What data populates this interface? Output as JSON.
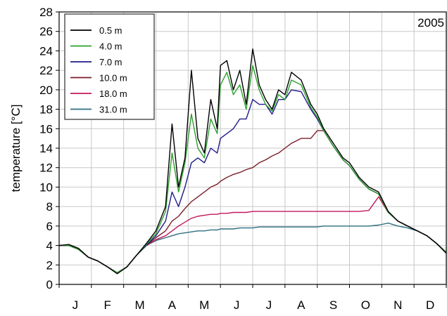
{
  "chart_data": {
    "type": "line",
    "annotation": "2005",
    "xlabel": "",
    "ylabel": "temperature [°C]",
    "ylim": [
      0,
      28
    ],
    "yticks": [
      0,
      2,
      4,
      6,
      8,
      10,
      12,
      14,
      16,
      18,
      20,
      22,
      24,
      26,
      28
    ],
    "x_unit": "month (Jan 1 = 0, Dec 31 = 12)",
    "xlim": [
      0,
      12
    ],
    "month_labels": [
      "J",
      "F",
      "M",
      "A",
      "M",
      "J",
      "J",
      "A",
      "S",
      "O",
      "N",
      "D"
    ],
    "grid": true,
    "legend_position": "top-left",
    "series": [
      {
        "name": "0.5 m",
        "color": "#000000",
        "x": [
          0,
          0.3,
          0.6,
          0.9,
          1.2,
          1.5,
          1.8,
          2.1,
          2.4,
          2.7,
          3.0,
          3.3,
          3.5,
          3.7,
          3.9,
          4.1,
          4.3,
          4.5,
          4.7,
          4.9,
          5.0,
          5.2,
          5.4,
          5.6,
          5.8,
          6.0,
          6.2,
          6.4,
          6.6,
          6.8,
          7.0,
          7.2,
          7.5,
          7.8,
          8.0,
          8.2,
          8.5,
          8.8,
          9.0,
          9.3,
          9.6,
          9.9,
          10.2,
          10.5,
          10.8,
          11.1,
          11.4,
          11.7,
          12.0
        ],
        "values": [
          4.0,
          4.1,
          3.7,
          2.8,
          2.4,
          1.8,
          1.1,
          1.8,
          3.0,
          4.2,
          5.5,
          8.0,
          16.5,
          10.0,
          13.0,
          22.0,
          15.0,
          13.5,
          19.0,
          16.0,
          22.5,
          23.0,
          20.0,
          22.0,
          18.5,
          24.2,
          20.5,
          19.0,
          18.0,
          20.0,
          19.5,
          21.8,
          21.0,
          18.5,
          17.5,
          16.0,
          14.5,
          13.0,
          12.5,
          11.0,
          10.0,
          9.5,
          7.5,
          6.5,
          6.0,
          5.5,
          5.0,
          4.2,
          3.2
        ]
      },
      {
        "name": "4.0 m",
        "color": "#2ca02c",
        "x": [
          0,
          0.3,
          0.6,
          0.9,
          1.2,
          1.5,
          1.8,
          2.1,
          2.4,
          2.7,
          3.0,
          3.3,
          3.5,
          3.7,
          3.9,
          4.1,
          4.3,
          4.5,
          4.7,
          4.9,
          5.0,
          5.2,
          5.4,
          5.6,
          5.8,
          6.0,
          6.2,
          6.4,
          6.6,
          6.8,
          7.0,
          7.2,
          7.5,
          7.8,
          8.0,
          8.2,
          8.5,
          8.8,
          9.0,
          9.3,
          9.6,
          9.9,
          10.2,
          10.5,
          10.8,
          11.1,
          11.4,
          11.7,
          12.0
        ],
        "values": [
          4.0,
          4.0,
          3.6,
          2.8,
          2.4,
          1.8,
          1.2,
          1.8,
          3.0,
          4.1,
          5.2,
          7.5,
          13.5,
          9.5,
          12.5,
          17.5,
          14.0,
          13.0,
          17.0,
          15.5,
          20.5,
          21.8,
          19.5,
          20.5,
          18.0,
          22.5,
          20.0,
          18.5,
          17.8,
          19.5,
          19.0,
          21.0,
          20.5,
          18.2,
          17.2,
          15.8,
          14.2,
          12.8,
          12.2,
          10.8,
          9.8,
          9.3,
          7.4,
          6.5,
          6.0,
          5.5,
          5.0,
          4.2,
          3.3
        ]
      },
      {
        "name": "7.0 m",
        "color": "#1f1a8c",
        "x": [
          0,
          0.3,
          0.6,
          0.9,
          1.2,
          1.5,
          1.8,
          2.1,
          2.4,
          2.7,
          3.0,
          3.3,
          3.5,
          3.7,
          3.9,
          4.1,
          4.3,
          4.5,
          4.7,
          4.9,
          5.0,
          5.2,
          5.4,
          5.6,
          5.8,
          6.0,
          6.2,
          6.4,
          6.6,
          6.8,
          7.0,
          7.2,
          7.5,
          7.8,
          8.0,
          8.2,
          8.5,
          8.8,
          9.0,
          9.3,
          9.6,
          9.9,
          10.2,
          10.5,
          10.8,
          11.1,
          11.4,
          11.7,
          12.0
        ],
        "values": [
          4.0,
          4.0,
          3.6,
          2.8,
          2.4,
          1.8,
          1.2,
          1.8,
          3.0,
          4.0,
          5.0,
          6.5,
          9.5,
          8.0,
          10.0,
          12.5,
          13.0,
          12.5,
          14.0,
          13.5,
          15.0,
          15.5,
          16.0,
          17.0,
          17.0,
          19.0,
          18.5,
          18.5,
          17.5,
          19.0,
          19.0,
          20.0,
          19.8,
          18.0,
          17.0,
          15.8,
          14.2,
          12.8,
          12.2,
          10.8,
          9.8,
          9.3,
          7.4,
          6.5,
          6.0,
          5.5,
          5.0,
          4.2,
          3.3
        ]
      },
      {
        "name": "10.0 m",
        "color": "#7a1e2a",
        "x": [
          0,
          0.3,
          0.6,
          0.9,
          1.2,
          1.5,
          1.8,
          2.1,
          2.4,
          2.7,
          3.0,
          3.3,
          3.5,
          3.7,
          3.9,
          4.1,
          4.3,
          4.5,
          4.7,
          4.9,
          5.0,
          5.2,
          5.4,
          5.6,
          5.8,
          6.0,
          6.2,
          6.4,
          6.6,
          6.8,
          7.0,
          7.2,
          7.5,
          7.8,
          8.0,
          8.2,
          8.5,
          8.8,
          9.0,
          9.3,
          9.6,
          9.9,
          10.2,
          10.5,
          10.8,
          11.1,
          11.4,
          11.7,
          12.0
        ],
        "values": [
          4.0,
          4.0,
          3.6,
          2.8,
          2.4,
          1.8,
          1.2,
          1.8,
          3.0,
          4.0,
          4.8,
          5.5,
          6.5,
          7.0,
          7.8,
          8.5,
          9.0,
          9.5,
          10.0,
          10.3,
          10.6,
          11.0,
          11.3,
          11.5,
          11.8,
          12.0,
          12.5,
          12.8,
          13.2,
          13.5,
          14.0,
          14.5,
          15.0,
          15.0,
          15.8,
          15.8,
          14.2,
          12.8,
          12.2,
          10.8,
          9.8,
          9.3,
          7.4,
          6.5,
          6.0,
          5.5,
          5.0,
          4.2,
          3.3
        ]
      },
      {
        "name": "18.0 m",
        "color": "#c2185b",
        "x": [
          0,
          0.3,
          0.6,
          0.9,
          1.2,
          1.5,
          1.8,
          2.1,
          2.4,
          2.7,
          3.0,
          3.3,
          3.5,
          3.7,
          3.9,
          4.1,
          4.3,
          4.5,
          4.7,
          4.9,
          5.0,
          5.2,
          5.4,
          5.6,
          5.8,
          6.0,
          6.2,
          6.4,
          6.6,
          6.8,
          7.0,
          7.2,
          7.5,
          7.8,
          8.0,
          8.2,
          8.5,
          8.8,
          9.0,
          9.3,
          9.6,
          9.9,
          10.2,
          10.5,
          10.8,
          11.1,
          11.4,
          11.7,
          12.0
        ],
        "values": [
          4.0,
          4.0,
          3.6,
          2.8,
          2.4,
          1.8,
          1.2,
          1.8,
          3.0,
          4.0,
          4.6,
          5.0,
          5.5,
          6.0,
          6.4,
          6.8,
          7.0,
          7.1,
          7.2,
          7.2,
          7.3,
          7.3,
          7.4,
          7.4,
          7.4,
          7.5,
          7.5,
          7.5,
          7.5,
          7.5,
          7.5,
          7.5,
          7.5,
          7.5,
          7.5,
          7.5,
          7.5,
          7.5,
          7.5,
          7.5,
          7.6,
          9.0,
          7.4,
          6.5,
          6.0,
          5.5,
          5.0,
          4.2,
          3.3
        ]
      },
      {
        "name": "31.0 m",
        "color": "#2e6f80",
        "x": [
          0,
          0.3,
          0.6,
          0.9,
          1.2,
          1.5,
          1.8,
          2.1,
          2.4,
          2.7,
          3.0,
          3.3,
          3.5,
          3.7,
          3.9,
          4.1,
          4.3,
          4.5,
          4.7,
          4.9,
          5.0,
          5.2,
          5.4,
          5.6,
          5.8,
          6.0,
          6.2,
          6.4,
          6.6,
          6.8,
          7.0,
          7.2,
          7.5,
          7.8,
          8.0,
          8.2,
          8.5,
          8.8,
          9.0,
          9.3,
          9.6,
          9.9,
          10.2,
          10.5,
          10.8,
          11.1,
          11.4,
          11.7,
          12.0
        ],
        "values": [
          4.0,
          4.0,
          3.6,
          2.8,
          2.4,
          1.8,
          1.2,
          1.8,
          3.0,
          4.0,
          4.5,
          4.8,
          5.0,
          5.2,
          5.3,
          5.4,
          5.5,
          5.5,
          5.6,
          5.6,
          5.7,
          5.7,
          5.7,
          5.8,
          5.8,
          5.8,
          5.9,
          5.9,
          5.9,
          5.9,
          5.9,
          5.9,
          5.9,
          5.9,
          5.9,
          6.0,
          6.0,
          6.0,
          6.0,
          6.0,
          6.0,
          6.1,
          6.3,
          6.0,
          5.8,
          5.5,
          5.0,
          4.2,
          3.3
        ]
      }
    ]
  }
}
